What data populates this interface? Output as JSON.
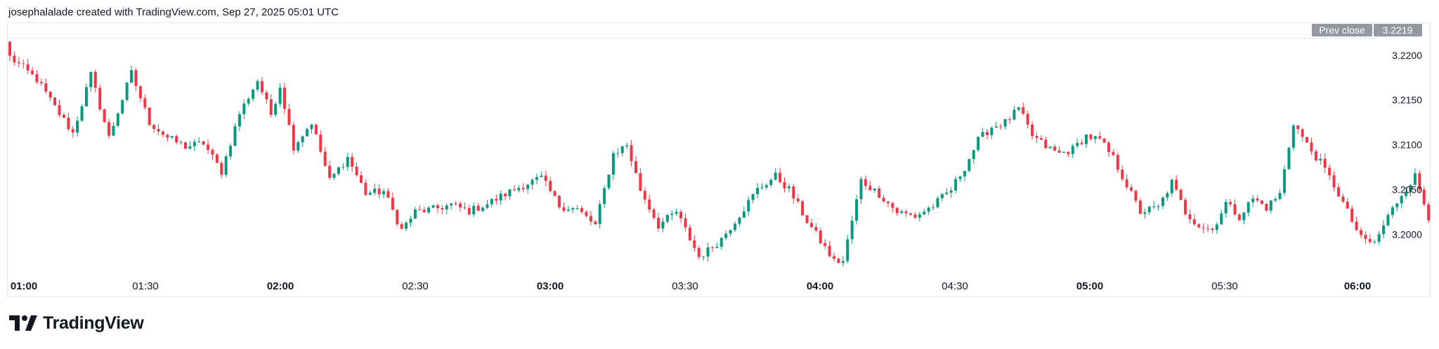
{
  "header": {
    "attribution": "josephalalade created with TradingView.com, Sep 27, 2025 05:01 UTC"
  },
  "brand": {
    "name": "TradingView",
    "icon": "tradingview-logo-icon"
  },
  "prev_close": {
    "label": "Prev close",
    "value": "3.2219"
  },
  "colors": {
    "up": "#089981",
    "down": "#f23645",
    "badge_bg": "#9598a1",
    "grid": "#f0f3fa",
    "text": "#131722"
  },
  "chart_data": {
    "type": "candlestick",
    "x_start": "01:00",
    "x_end": "06:00",
    "interval_minutes": 1,
    "ylim": [
      3.1955,
      3.2235
    ],
    "y_ticks": [
      3.2,
      3.205,
      3.21,
      3.215,
      3.22
    ],
    "y_tick_labels": [
      "3.2000",
      "3.2050",
      "3.2100",
      "3.2150",
      "3.2200"
    ],
    "x_ticks": [
      {
        "label": "01:00",
        "bold": true
      },
      {
        "label": "01:30",
        "bold": false
      },
      {
        "label": "02:00",
        "bold": true
      },
      {
        "label": "02:30",
        "bold": false
      },
      {
        "label": "03:00",
        "bold": true
      },
      {
        "label": "03:30",
        "bold": false
      },
      {
        "label": "04:00",
        "bold": true
      },
      {
        "label": "04:30",
        "bold": false
      },
      {
        "label": "05:00",
        "bold": true
      },
      {
        "label": "05:30",
        "bold": false
      },
      {
        "label": "06:00",
        "bold": true
      }
    ],
    "prev_close": 3.2219,
    "grid": false,
    "close_anchors": [
      [
        0,
        3.2198
      ],
      [
        6,
        3.2173
      ],
      [
        10,
        3.2142
      ],
      [
        14,
        3.2113
      ],
      [
        18,
        3.2178
      ],
      [
        22,
        3.2108
      ],
      [
        27,
        3.218
      ],
      [
        31,
        3.2125
      ],
      [
        35,
        3.2108
      ],
      [
        39,
        3.2098
      ],
      [
        43,
        3.2102
      ],
      [
        47,
        3.207
      ],
      [
        51,
        3.2135
      ],
      [
        55,
        3.2172
      ],
      [
        58,
        3.2134
      ],
      [
        60,
        3.2166
      ],
      [
        63,
        3.2098
      ],
      [
        67,
        3.2125
      ],
      [
        71,
        3.206
      ],
      [
        75,
        3.2086
      ],
      [
        79,
        3.2046
      ],
      [
        83,
        3.2048
      ],
      [
        87,
        3.2005
      ],
      [
        90,
        3.2025
      ],
      [
        94,
        3.2028
      ],
      [
        98,
        3.2033
      ],
      [
        102,
        3.2026
      ],
      [
        106,
        3.2034
      ],
      [
        110,
        3.2045
      ],
      [
        114,
        3.2055
      ],
      [
        118,
        3.2063
      ],
      [
        122,
        3.2032
      ],
      [
        126,
        3.2028
      ],
      [
        130,
        3.201
      ],
      [
        134,
        3.209
      ],
      [
        137,
        3.21
      ],
      [
        140,
        3.205
      ],
      [
        144,
        3.201
      ],
      [
        148,
        3.2025
      ],
      [
        151,
        3.1995
      ],
      [
        153,
        3.1975
      ],
      [
        155,
        3.1982
      ],
      [
        158,
        3.1995
      ],
      [
        162,
        3.2022
      ],
      [
        166,
        3.205
      ],
      [
        170,
        3.2065
      ],
      [
        173,
        3.205
      ],
      [
        177,
        3.2015
      ],
      [
        181,
        3.1985
      ],
      [
        183,
        3.197
      ],
      [
        185,
        3.197
      ],
      [
        189,
        3.206
      ],
      [
        193,
        3.2045
      ],
      [
        197,
        3.2025
      ],
      [
        201,
        3.202
      ],
      [
        205,
        3.2032
      ],
      [
        209,
        3.205
      ],
      [
        212,
        3.2075
      ],
      [
        215,
        3.2105
      ],
      [
        218,
        3.212
      ],
      [
        221,
        3.2125
      ],
      [
        224,
        3.214
      ],
      [
        227,
        3.211
      ],
      [
        230,
        3.2098
      ],
      [
        233,
        3.209
      ],
      [
        236,
        3.2095
      ],
      [
        239,
        3.211
      ],
      [
        242,
        3.2105
      ],
      [
        245,
        3.2085
      ],
      [
        248,
        3.2055
      ],
      [
        251,
        3.2025
      ],
      [
        255,
        3.203
      ],
      [
        258,
        3.2058
      ],
      [
        261,
        3.2025
      ],
      [
        264,
        3.201
      ],
      [
        267,
        3.2005
      ],
      [
        270,
        3.2035
      ],
      [
        273,
        3.202
      ],
      [
        276,
        3.204
      ],
      [
        279,
        3.203
      ],
      [
        282,
        3.2045
      ],
      [
        285,
        3.2125
      ],
      [
        288,
        3.21
      ],
      [
        291,
        3.208
      ],
      [
        294,
        3.2055
      ],
      [
        297,
        3.2025
      ],
      [
        300,
        3.1995
      ],
      [
        303,
        3.199
      ],
      [
        306,
        3.202
      ],
      [
        309,
        3.2045
      ],
      [
        312,
        3.2065
      ],
      [
        315,
        3.202
      ]
    ]
  }
}
